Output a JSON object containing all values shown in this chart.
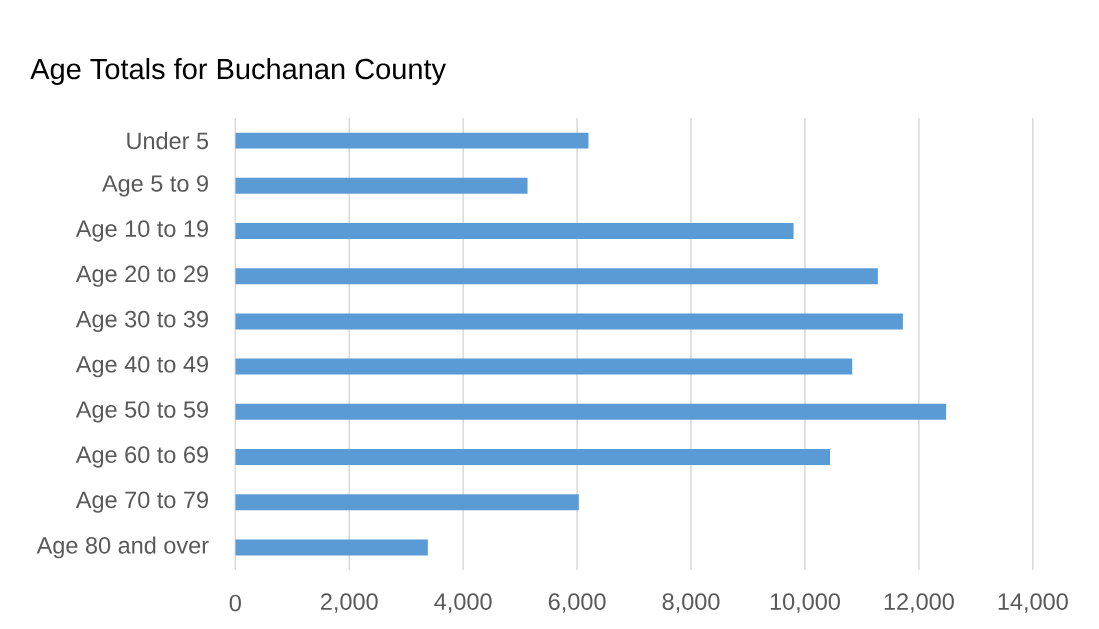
{
  "chart_data": {
    "type": "bar",
    "orientation": "horizontal",
    "title": "Age Totals for Buchanan County",
    "categories": [
      "Under 5",
      "Age 5 to 9",
      "Age 10 to 19",
      "Age 20 to 29",
      "Age 30 to 39",
      "Age 40 to 49",
      "Age 50 to 59",
      "Age 60 to 69",
      "Age 70 to 79",
      "Age 80 and over"
    ],
    "values": [
      6200,
      5130,
      9800,
      11280,
      11720,
      10830,
      12480,
      10440,
      6030,
      3380
    ],
    "color": "#5b9bd5",
    "xlim": [
      0,
      14000
    ],
    "xticks": [
      0,
      {
        "value": 2000,
        "label": "2,000"
      },
      {
        "value": 4000,
        "label": "4,000"
      },
      {
        "value": 6000,
        "label": "6,000"
      },
      {
        "value": 8000,
        "label": "8,000"
      },
      {
        "value": 10000,
        "label": "10,000"
      },
      {
        "value": 12000,
        "label": "12,000"
      },
      {
        "value": 14000,
        "label": "14,000"
      }
    ],
    "grid": "x"
  }
}
